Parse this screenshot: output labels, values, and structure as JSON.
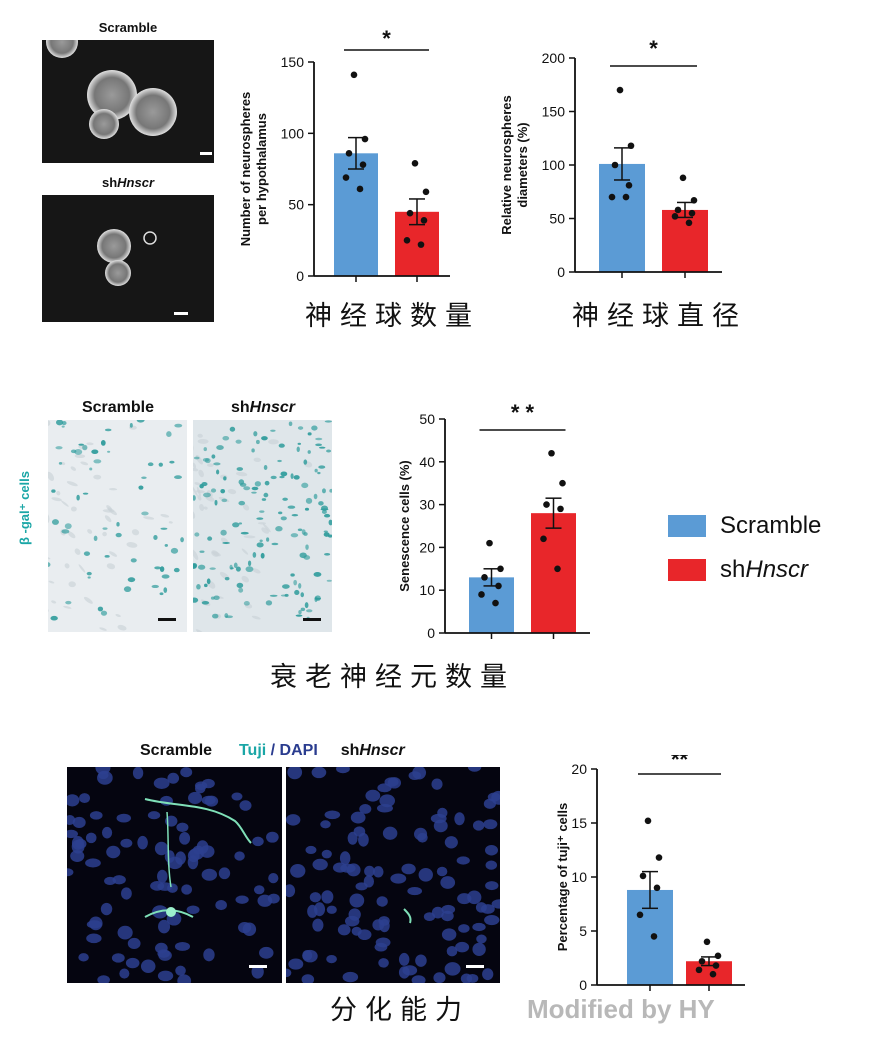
{
  "colors": {
    "scramble": "#5b9bd5",
    "shHnscr": "#e8262a",
    "tuji_label": "#1aa6a6",
    "dapi_label": "#2a3c8f",
    "watermark": "#b8b8b8"
  },
  "panel1": {
    "img_top_label": "Scramble",
    "img_bottom_label_prefix": "sh",
    "img_bottom_label_italic": "Hnscr",
    "caption_left": "神经球数量",
    "caption_right": "神经球直径"
  },
  "panel2": {
    "col_label_left": "Scramble",
    "col_label_right_prefix": "sh",
    "col_label_right_italic": "Hnscr",
    "side_label": "β -gal⁺ cells",
    "caption": "衰老神经元数量"
  },
  "panel3": {
    "label_scramble": "Scramble",
    "label_tuji": "Tuji",
    "label_slash": " / ",
    "label_dapi": "DAPI",
    "label_sh_prefix": "sh",
    "label_sh_italic": "Hnscr",
    "caption": "分化能力"
  },
  "legend": {
    "items": [
      {
        "prefix": "Scramble",
        "italic": ""
      },
      {
        "prefix": "sh",
        "italic": "Hnscr"
      }
    ]
  },
  "watermark": "Modified by HY",
  "chart_data": [
    {
      "type": "bar",
      "categories": [
        "Scramble",
        "shHnscr"
      ],
      "values": [
        86,
        45
      ],
      "errors": [
        11,
        9
      ],
      "points": [
        [
          141,
          96,
          86,
          78,
          69,
          61
        ],
        [
          79,
          59,
          44,
          39,
          25,
          22
        ]
      ],
      "significance": "*",
      "ylabel": "Number of neurospheres\nper hypothalamus",
      "ylim": [
        0,
        150
      ],
      "yticks": [
        0,
        50,
        100,
        150
      ]
    },
    {
      "type": "bar",
      "categories": [
        "Scramble",
        "shHnscr"
      ],
      "values": [
        101,
        58
      ],
      "errors": [
        15,
        7
      ],
      "points": [
        [
          170,
          118,
          100,
          81,
          70,
          70
        ],
        [
          88,
          67,
          58,
          55,
          52,
          46
        ]
      ],
      "significance": "*",
      "ylabel": "Relative neurospheres\ndiameters (%)",
      "ylim": [
        0,
        200
      ],
      "yticks": [
        0,
        50,
        100,
        150,
        200
      ]
    },
    {
      "type": "bar",
      "categories": [
        "Scramble",
        "shHnscr"
      ],
      "values": [
        13,
        28
      ],
      "errors": [
        2,
        3.5
      ],
      "points": [
        [
          21,
          15,
          13,
          11,
          9,
          7
        ],
        [
          42,
          35,
          30,
          29,
          22,
          15
        ]
      ],
      "significance": "* *",
      "ylabel": "Senescence cells (%)",
      "ylim": [
        0,
        50
      ],
      "yticks": [
        0,
        10,
        20,
        30,
        40,
        50
      ]
    },
    {
      "type": "bar",
      "categories": [
        "Scramble",
        "shHnscr"
      ],
      "values": [
        8.8,
        2.2
      ],
      "errors": [
        1.7,
        0.4
      ],
      "points": [
        [
          15.2,
          11.8,
          10.1,
          9.0,
          6.5,
          4.5
        ],
        [
          4.0,
          2.7,
          2.2,
          1.8,
          1.4,
          1.0
        ]
      ],
      "significance": "**",
      "ylabel": "Percentage of tuji⁺ cells",
      "ylim": [
        0,
        20
      ],
      "yticks": [
        0,
        5,
        10,
        15,
        20
      ]
    }
  ]
}
